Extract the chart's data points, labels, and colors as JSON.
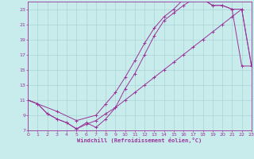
{
  "xlabel": "Windchill (Refroidissement éolien,°C)",
  "bg_color": "#c8ecec",
  "grid_color": "#aad4d4",
  "line_color": "#993399",
  "xmin": 0,
  "xmax": 23,
  "ymin": 7,
  "ymax": 24,
  "yticks": [
    7,
    9,
    11,
    13,
    15,
    17,
    19,
    21,
    23
  ],
  "xticks": [
    0,
    1,
    2,
    3,
    4,
    5,
    6,
    7,
    8,
    9,
    10,
    11,
    12,
    13,
    14,
    15,
    16,
    17,
    18,
    19,
    20,
    21,
    22,
    23
  ],
  "line1_x": [
    0,
    1,
    2,
    3,
    4,
    5,
    6,
    7,
    8,
    9,
    10,
    11,
    12,
    13,
    14,
    15,
    16,
    17,
    18,
    19,
    20,
    21,
    22,
    23
  ],
  "line1_y": [
    11,
    10.5,
    9.2,
    8.5,
    8.0,
    7.2,
    7.8,
    8.3,
    9.2,
    10.0,
    11.0,
    12.0,
    13.0,
    14.0,
    15.0,
    16.0,
    17.0,
    18.0,
    19.0,
    20.0,
    21.0,
    22.0,
    23.0,
    15.5
  ],
  "line2_x": [
    0,
    1,
    2,
    3,
    4,
    5,
    6,
    7,
    8,
    9,
    10,
    11,
    12,
    13,
    14,
    15,
    16,
    17,
    18,
    19,
    20,
    21,
    22,
    23
  ],
  "line2_y": [
    11,
    10.5,
    9.2,
    8.5,
    8.0,
    7.2,
    8.0,
    7.4,
    8.5,
    10.0,
    12.5,
    14.5,
    17.0,
    19.5,
    21.5,
    22.5,
    23.5,
    24.3,
    24.3,
    23.5,
    23.5,
    23.0,
    23.0,
    15.5
  ],
  "line3_x": [
    0,
    3,
    5,
    7,
    8,
    9,
    10,
    11,
    12,
    13,
    14,
    15,
    16,
    17,
    18,
    19,
    20,
    21,
    22,
    23
  ],
  "line3_y": [
    11,
    9.5,
    8.3,
    9.0,
    10.5,
    12.0,
    14.0,
    16.2,
    18.5,
    20.5,
    22.0,
    23.0,
    24.3,
    24.3,
    24.3,
    23.5,
    23.5,
    23.0,
    15.5,
    15.5
  ]
}
